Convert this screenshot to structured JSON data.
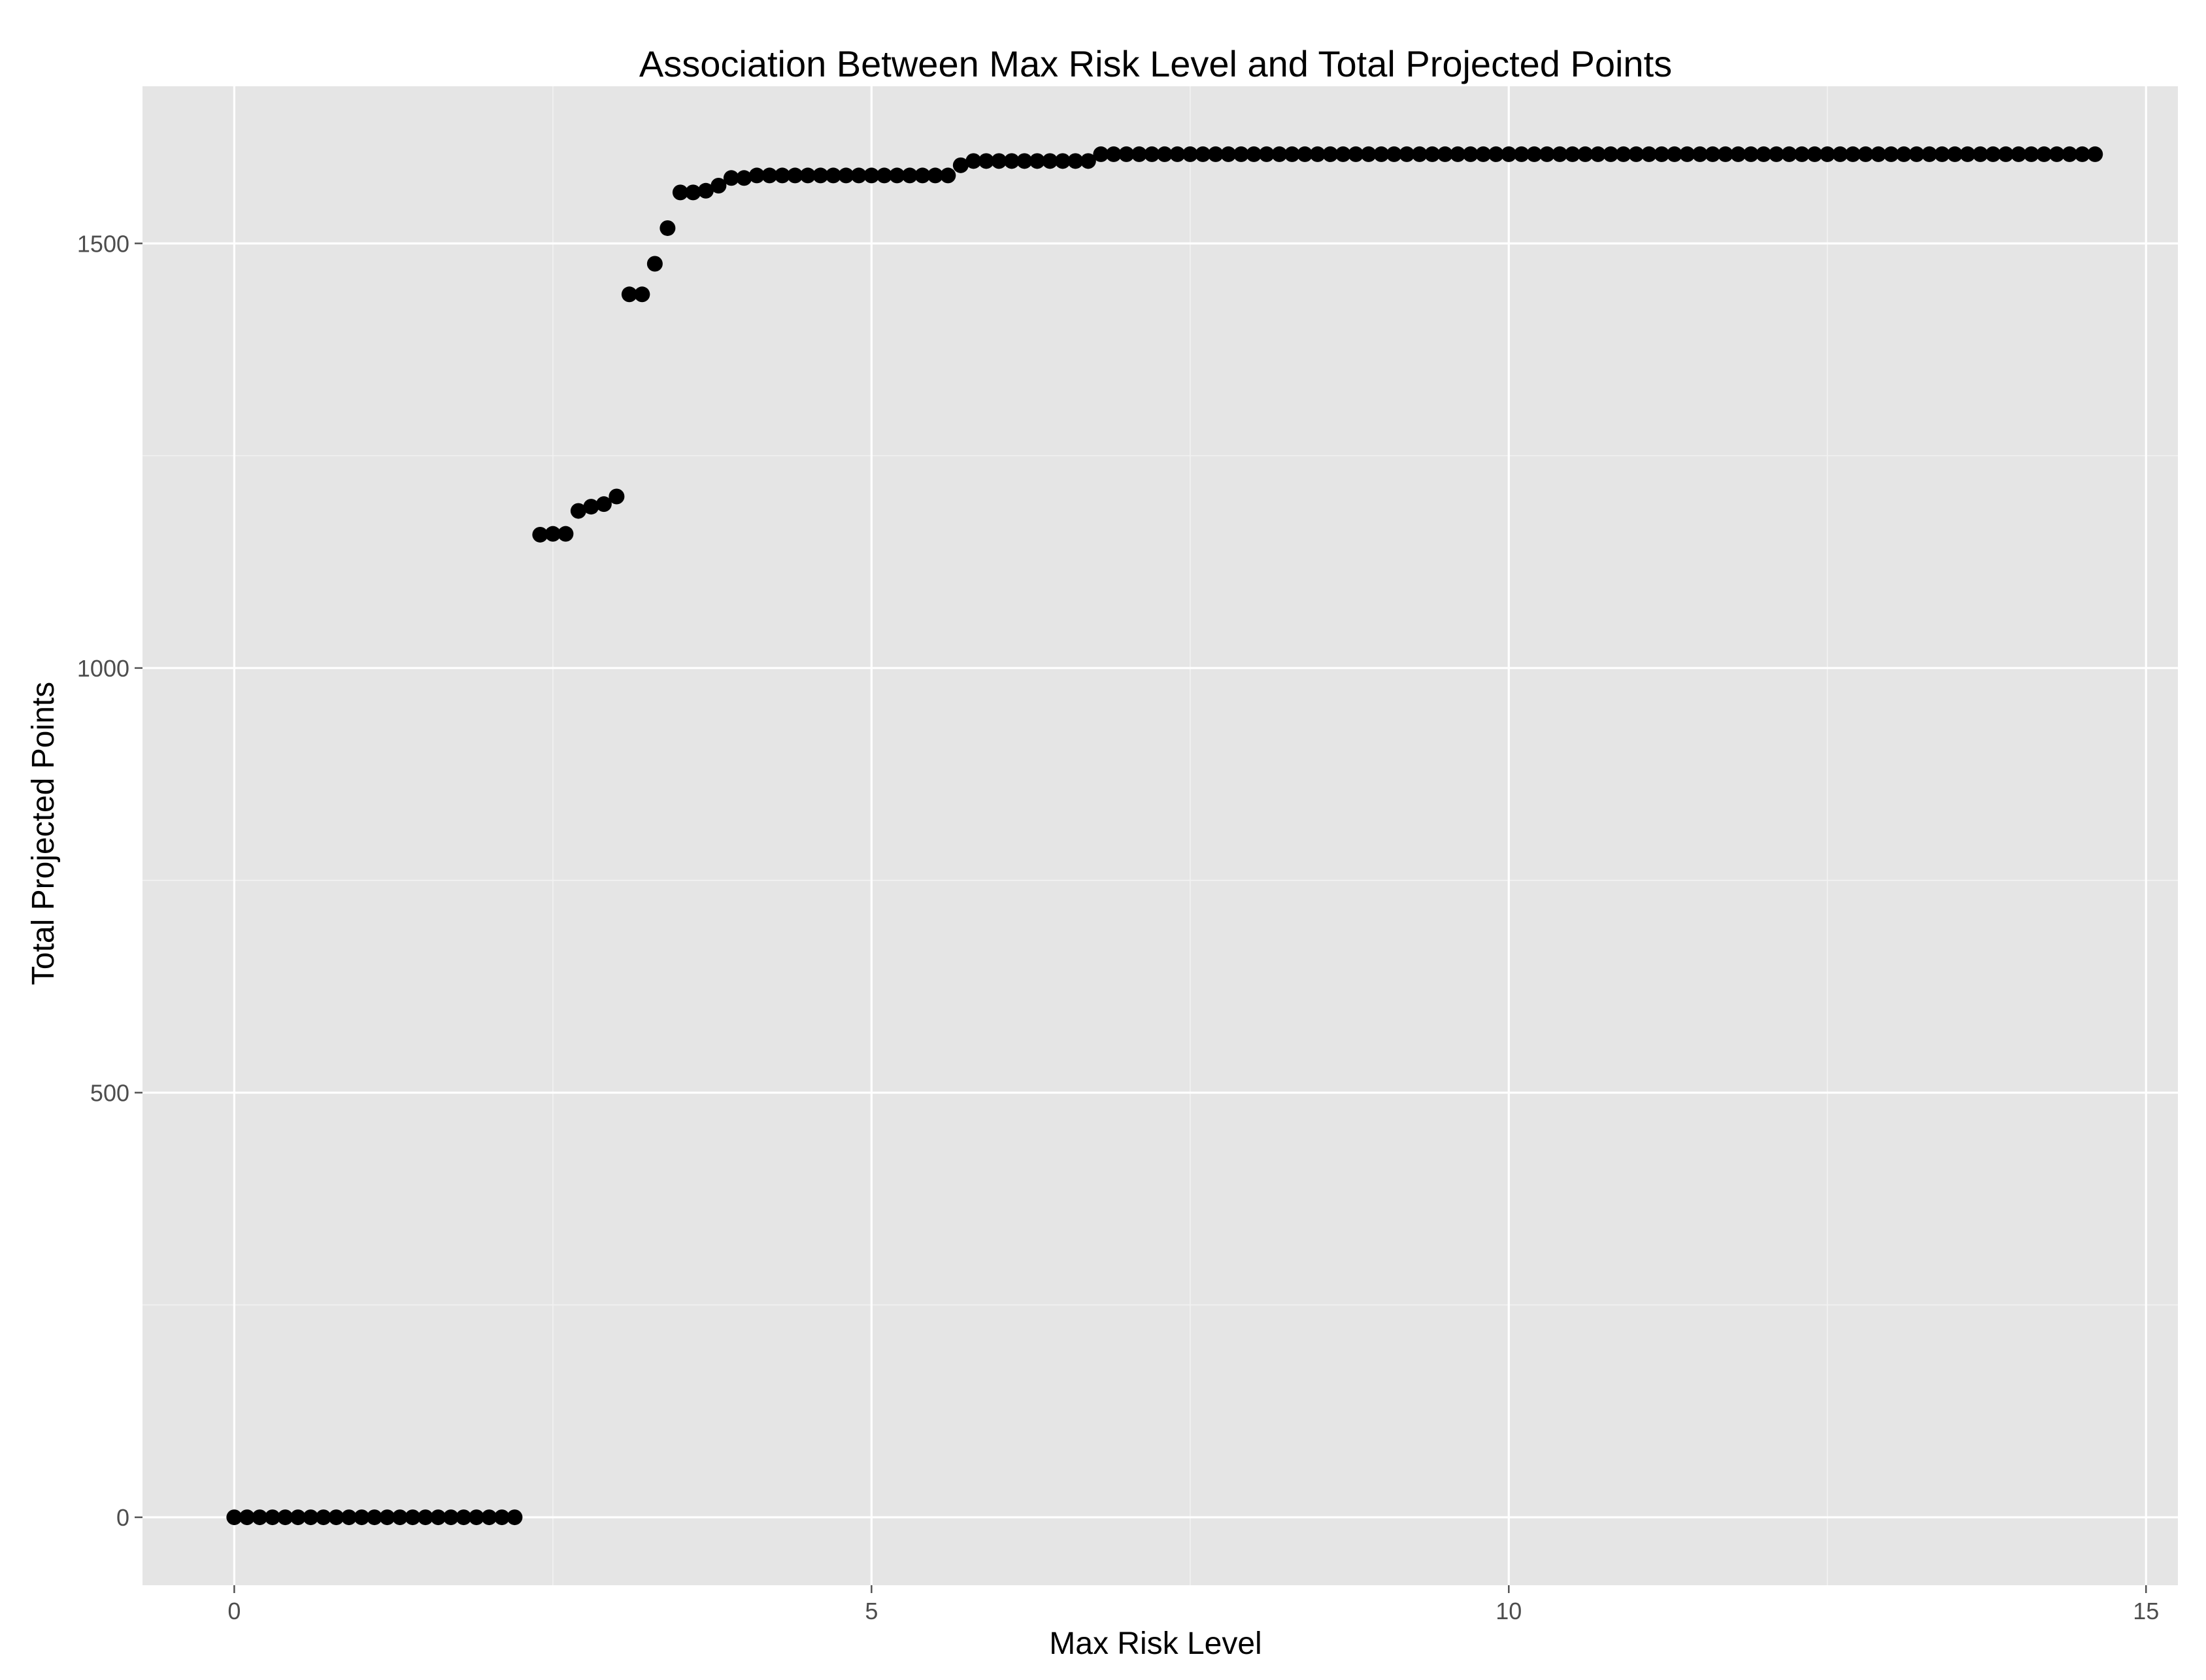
{
  "chart_data": {
    "type": "scatter",
    "title": "Association Between Max Risk Level and Total Projected Points",
    "xlabel": "Max Risk Level",
    "ylabel": "Total Projected Points",
    "xlim": [
      -0.72,
      15.25
    ],
    "ylim": [
      -80,
      1685
    ],
    "x_ticks": [
      0,
      5,
      10,
      15
    ],
    "y_ticks": [
      0,
      500,
      1000,
      1500
    ],
    "grid": true,
    "legend": "none",
    "colors": {
      "panel": "#e5e5e5",
      "point": "#000000",
      "grid": "#ffffff"
    },
    "points": [
      [
        0.0,
        0
      ],
      [
        0.1,
        0
      ],
      [
        0.2,
        0
      ],
      [
        0.3,
        0
      ],
      [
        0.4,
        0
      ],
      [
        0.5,
        0
      ],
      [
        0.6,
        0
      ],
      [
        0.7,
        0
      ],
      [
        0.8,
        0
      ],
      [
        0.9,
        0
      ],
      [
        1.0,
        0
      ],
      [
        1.1,
        0
      ],
      [
        1.2,
        0
      ],
      [
        1.3,
        0
      ],
      [
        1.4,
        0
      ],
      [
        1.5,
        0
      ],
      [
        1.6,
        0
      ],
      [
        1.7,
        0
      ],
      [
        1.8,
        0
      ],
      [
        1.9,
        0
      ],
      [
        2.0,
        0
      ],
      [
        2.1,
        0
      ],
      [
        2.2,
        0
      ],
      [
        2.4,
        1157
      ],
      [
        2.5,
        1158
      ],
      [
        2.6,
        1158
      ],
      [
        2.7,
        1185
      ],
      [
        2.8,
        1190
      ],
      [
        2.9,
        1193
      ],
      [
        3.0,
        1202
      ],
      [
        3.1,
        1440
      ],
      [
        3.2,
        1440
      ],
      [
        3.3,
        1476
      ],
      [
        3.4,
        1518
      ],
      [
        3.5,
        1560
      ],
      [
        3.6,
        1560
      ],
      [
        3.7,
        1562
      ],
      [
        3.8,
        1568
      ],
      [
        3.9,
        1577
      ],
      [
        4.0,
        1577
      ],
      [
        4.1,
        1580
      ],
      [
        4.2,
        1580
      ],
      [
        4.3,
        1580
      ],
      [
        4.4,
        1580
      ],
      [
        4.5,
        1580
      ],
      [
        4.6,
        1580
      ],
      [
        4.7,
        1580
      ],
      [
        4.8,
        1580
      ],
      [
        4.9,
        1580
      ],
      [
        5.0,
        1580
      ],
      [
        5.1,
        1580
      ],
      [
        5.2,
        1580
      ],
      [
        5.3,
        1580
      ],
      [
        5.4,
        1580
      ],
      [
        5.5,
        1580
      ],
      [
        5.6,
        1580
      ],
      [
        5.7,
        1592
      ],
      [
        5.8,
        1597
      ],
      [
        5.9,
        1597
      ],
      [
        6.0,
        1597
      ],
      [
        6.1,
        1597
      ],
      [
        6.2,
        1597
      ],
      [
        6.3,
        1597
      ],
      [
        6.4,
        1597
      ],
      [
        6.5,
        1597
      ],
      [
        6.6,
        1597
      ],
      [
        6.7,
        1597
      ],
      [
        6.8,
        1605
      ],
      [
        6.9,
        1605
      ],
      [
        7.0,
        1605
      ],
      [
        7.1,
        1605
      ],
      [
        7.2,
        1605
      ],
      [
        7.3,
        1605
      ],
      [
        7.4,
        1605
      ],
      [
        7.5,
        1605
      ],
      [
        7.6,
        1605
      ],
      [
        7.7,
        1605
      ],
      [
        7.8,
        1605
      ],
      [
        7.9,
        1605
      ],
      [
        8.0,
        1605
      ],
      [
        8.1,
        1605
      ],
      [
        8.2,
        1605
      ],
      [
        8.3,
        1605
      ],
      [
        8.4,
        1605
      ],
      [
        8.5,
        1605
      ],
      [
        8.6,
        1605
      ],
      [
        8.7,
        1605
      ],
      [
        8.8,
        1605
      ],
      [
        8.9,
        1605
      ],
      [
        9.0,
        1605
      ],
      [
        9.1,
        1605
      ],
      [
        9.2,
        1605
      ],
      [
        9.3,
        1605
      ],
      [
        9.4,
        1605
      ],
      [
        9.5,
        1605
      ],
      [
        9.6,
        1605
      ],
      [
        9.7,
        1605
      ],
      [
        9.8,
        1605
      ],
      [
        9.9,
        1605
      ],
      [
        10.0,
        1605
      ],
      [
        10.1,
        1605
      ],
      [
        10.2,
        1605
      ],
      [
        10.3,
        1605
      ],
      [
        10.4,
        1605
      ],
      [
        10.5,
        1605
      ],
      [
        10.6,
        1605
      ],
      [
        10.7,
        1605
      ],
      [
        10.8,
        1605
      ],
      [
        10.9,
        1605
      ],
      [
        11.0,
        1605
      ],
      [
        11.1,
        1605
      ],
      [
        11.2,
        1605
      ],
      [
        11.3,
        1605
      ],
      [
        11.4,
        1605
      ],
      [
        11.5,
        1605
      ],
      [
        11.6,
        1605
      ],
      [
        11.7,
        1605
      ],
      [
        11.8,
        1605
      ],
      [
        11.9,
        1605
      ],
      [
        12.0,
        1605
      ],
      [
        12.1,
        1605
      ],
      [
        12.2,
        1605
      ],
      [
        12.3,
        1605
      ],
      [
        12.4,
        1605
      ],
      [
        12.5,
        1605
      ],
      [
        12.6,
        1605
      ],
      [
        12.7,
        1605
      ],
      [
        12.8,
        1605
      ],
      [
        12.9,
        1605
      ],
      [
        13.0,
        1605
      ],
      [
        13.1,
        1605
      ],
      [
        13.2,
        1605
      ],
      [
        13.3,
        1605
      ],
      [
        13.4,
        1605
      ],
      [
        13.5,
        1605
      ],
      [
        13.6,
        1605
      ],
      [
        13.7,
        1605
      ],
      [
        13.8,
        1605
      ],
      [
        13.9,
        1605
      ],
      [
        14.0,
        1605
      ],
      [
        14.1,
        1605
      ],
      [
        14.2,
        1605
      ],
      [
        14.3,
        1605
      ],
      [
        14.4,
        1605
      ],
      [
        14.5,
        1605
      ],
      [
        14.6,
        1605
      ]
    ]
  }
}
